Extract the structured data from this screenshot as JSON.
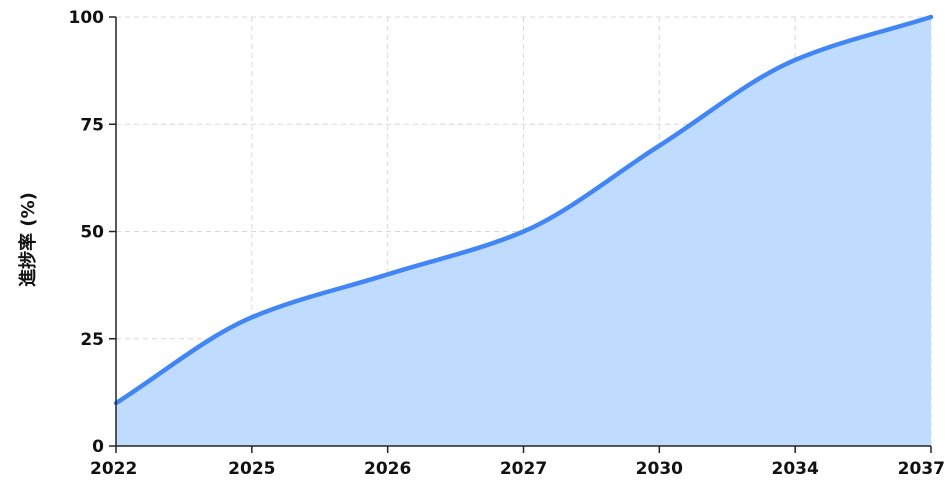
{
  "chart_data": {
    "type": "area",
    "title": "",
    "xlabel": "",
    "ylabel": "進捗率 (%)",
    "categories": [
      "2022",
      "2025",
      "2026",
      "2027",
      "2030",
      "2034",
      "2037"
    ],
    "series": [
      {
        "values": [
          10,
          30,
          40,
          50,
          70,
          90,
          100
        ]
      }
    ],
    "ylim": [
      0,
      100
    ],
    "yticks": [
      "0",
      "25",
      "50",
      "75",
      "100"
    ],
    "grid": true,
    "legend": "none",
    "colors": {
      "line": "#4285f4",
      "fill": "#bfdbfe"
    }
  }
}
